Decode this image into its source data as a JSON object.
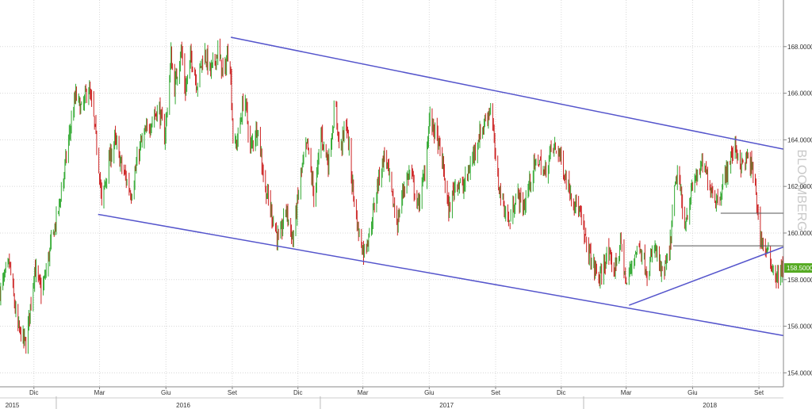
{
  "chart_data": {
    "type": "candlestick",
    "title": "",
    "xlabel": "",
    "ylabel": "",
    "ylim": [
      153.4,
      170.0
    ],
    "y_ticks": [
      "154.0000",
      "156.0000",
      "158.0000",
      "160.0000",
      "162.0000",
      "164.0000",
      "166.0000",
      "168.0000"
    ],
    "y_tick_values": [
      154,
      156,
      158,
      160,
      162,
      164,
      166,
      168
    ],
    "grid": true,
    "months": [
      {
        "label": "Dic",
        "date": "2015-12-01"
      },
      {
        "label": "Mar",
        "date": "2016-03-01"
      },
      {
        "label": "Giu",
        "date": "2016-06-01"
      },
      {
        "label": "Set",
        "date": "2016-09-01"
      },
      {
        "label": "Dic",
        "date": "2016-12-01"
      },
      {
        "label": "Mar",
        "date": "2017-03-01"
      },
      {
        "label": "Giu",
        "date": "2017-06-01"
      },
      {
        "label": "Set",
        "date": "2017-09-01"
      },
      {
        "label": "Dic",
        "date": "2017-12-01"
      },
      {
        "label": "Mar",
        "date": "2018-03-01"
      },
      {
        "label": "Giu",
        "date": "2018-06-01"
      },
      {
        "label": "Set",
        "date": "2018-09-01"
      }
    ],
    "years": [
      {
        "label": "2015",
        "date": "2015-11-01"
      },
      {
        "label": "2016",
        "date": "2016-06-25"
      },
      {
        "label": "2017",
        "date": "2017-06-25"
      },
      {
        "label": "2018",
        "date": "2018-06-25"
      }
    ],
    "year_boundaries": [
      "2016-01-01",
      "2017-01-01",
      "2018-01-01"
    ],
    "x_range": [
      "2015-10-15",
      "2018-10-05"
    ],
    "last_price": "158.5000",
    "last_price_value": 158.5,
    "watermark": "BLOOMBERG",
    "colors": {
      "up": "#33aa33",
      "down": "#cc2222",
      "trendline": "#5555cc",
      "level": "#555555",
      "last_price_bg": "#55aa22",
      "grid": "#d8d8d8"
    },
    "trendlines": [
      {
        "name": "upper-channel",
        "start": [
          "2016-08-30",
          168.4
        ],
        "end": [
          "2018-10-10",
          163.6
        ]
      },
      {
        "name": "lower-channel",
        "start": [
          "2016-02-28",
          160.8
        ],
        "end": [
          "2018-10-05",
          155.6
        ]
      },
      {
        "name": "rising-support",
        "start": [
          "2018-03-05",
          156.9
        ],
        "end": [
          "2018-10-05",
          159.4
        ]
      }
    ],
    "levels": [
      {
        "name": "level-160-9",
        "start": "2018-07-10",
        "end": "2018-10-10",
        "value": 160.85
      },
      {
        "name": "level-159-5",
        "start": "2018-05-05",
        "end": "2018-10-10",
        "value": 159.45
      }
    ],
    "anchors": [
      [
        "2015-10-15",
        157.5
      ],
      [
        "2015-10-28",
        158.7
      ],
      [
        "2015-11-08",
        156.0
      ],
      [
        "2015-11-20",
        155.2
      ],
      [
        "2015-12-02",
        158.5
      ],
      [
        "2015-12-12",
        157.4
      ],
      [
        "2015-12-24",
        159.4
      ],
      [
        "2016-01-04",
        161.0
      ],
      [
        "2016-01-12",
        162.6
      ],
      [
        "2016-01-20",
        164.4
      ],
      [
        "2016-01-28",
        165.9
      ],
      [
        "2016-02-06",
        165.2
      ],
      [
        "2016-02-14",
        166.4
      ],
      [
        "2016-02-22",
        164.9
      ],
      [
        "2016-03-01",
        162.6
      ],
      [
        "2016-03-04",
        161.2
      ],
      [
        "2016-03-12",
        162.8
      ],
      [
        "2016-03-22",
        164.0
      ],
      [
        "2016-04-02",
        162.7
      ],
      [
        "2016-04-14",
        161.7
      ],
      [
        "2016-04-26",
        163.7
      ],
      [
        "2016-05-10",
        164.7
      ],
      [
        "2016-05-22",
        165.4
      ],
      [
        "2016-05-30",
        164.1
      ],
      [
        "2016-06-04",
        165.7
      ],
      [
        "2016-06-08",
        167.6
      ],
      [
        "2016-06-13",
        166.2
      ],
      [
        "2016-06-22",
        167.9
      ],
      [
        "2016-06-28",
        166.1
      ],
      [
        "2016-07-06",
        167.6
      ],
      [
        "2016-07-14",
        166.4
      ],
      [
        "2016-07-24",
        167.8
      ],
      [
        "2016-08-02",
        166.9
      ],
      [
        "2016-08-12",
        167.8
      ],
      [
        "2016-08-20",
        166.7
      ],
      [
        "2016-08-28",
        168.1
      ],
      [
        "2016-09-03",
        163.4
      ],
      [
        "2016-09-10",
        164.3
      ],
      [
        "2016-09-18",
        166.0
      ],
      [
        "2016-09-26",
        163.6
      ],
      [
        "2016-10-06",
        164.6
      ],
      [
        "2016-10-16",
        162.0
      ],
      [
        "2016-10-26",
        160.8
      ],
      [
        "2016-11-05",
        159.5
      ],
      [
        "2016-11-14",
        161.1
      ],
      [
        "2016-11-24",
        159.7
      ],
      [
        "2016-12-05",
        162.5
      ],
      [
        "2016-12-14",
        163.8
      ],
      [
        "2016-12-24",
        161.4
      ],
      [
        "2017-01-02",
        164.3
      ],
      [
        "2017-01-12",
        163.0
      ],
      [
        "2017-01-22",
        165.6
      ],
      [
        "2017-01-28",
        163.4
      ],
      [
        "2017-02-06",
        164.8
      ],
      [
        "2017-02-14",
        162.2
      ],
      [
        "2017-02-22",
        160.2
      ],
      [
        "2017-03-02",
        159.2
      ],
      [
        "2017-03-12",
        160.2
      ],
      [
        "2017-03-22",
        162.2
      ],
      [
        "2017-04-01",
        163.5
      ],
      [
        "2017-04-10",
        161.6
      ],
      [
        "2017-04-18",
        160.4
      ],
      [
        "2017-04-26",
        161.9
      ],
      [
        "2017-05-06",
        162.7
      ],
      [
        "2017-05-16",
        161.1
      ],
      [
        "2017-05-26",
        162.6
      ],
      [
        "2017-06-01",
        164.9
      ],
      [
        "2017-06-10",
        164.3
      ],
      [
        "2017-06-20",
        162.9
      ],
      [
        "2017-06-28",
        160.9
      ],
      [
        "2017-07-08",
        162.3
      ],
      [
        "2017-07-18",
        161.9
      ],
      [
        "2017-07-28",
        162.9
      ],
      [
        "2017-08-06",
        163.9
      ],
      [
        "2017-08-16",
        164.7
      ],
      [
        "2017-08-26",
        165.5
      ],
      [
        "2017-09-02",
        162.6
      ],
      [
        "2017-09-10",
        161.4
      ],
      [
        "2017-09-20",
        160.4
      ],
      [
        "2017-09-30",
        161.7
      ],
      [
        "2017-10-10",
        161.1
      ],
      [
        "2017-10-20",
        162.4
      ],
      [
        "2017-10-30",
        163.2
      ],
      [
        "2017-11-08",
        162.5
      ],
      [
        "2017-11-18",
        163.7
      ],
      [
        "2017-11-28",
        163.5
      ],
      [
        "2017-12-06",
        162.5
      ],
      [
        "2017-12-16",
        161.6
      ],
      [
        "2017-12-26",
        160.9
      ],
      [
        "2018-01-04",
        159.6
      ],
      [
        "2018-01-14",
        158.6
      ],
      [
        "2018-01-24",
        158.0
      ],
      [
        "2018-02-02",
        159.1
      ],
      [
        "2018-02-12",
        158.4
      ],
      [
        "2018-02-22",
        159.6
      ],
      [
        "2018-03-01",
        157.7
      ],
      [
        "2018-03-10",
        158.9
      ],
      [
        "2018-03-20",
        159.5
      ],
      [
        "2018-03-30",
        158.3
      ],
      [
        "2018-04-10",
        159.4
      ],
      [
        "2018-04-20",
        158.1
      ],
      [
        "2018-04-30",
        159.1
      ],
      [
        "2018-05-06",
        161.5
      ],
      [
        "2018-05-12",
        162.8
      ],
      [
        "2018-05-20",
        160.2
      ],
      [
        "2018-05-28",
        161.4
      ],
      [
        "2018-06-05",
        162.4
      ],
      [
        "2018-06-15",
        162.9
      ],
      [
        "2018-06-25",
        162.1
      ],
      [
        "2018-07-04",
        161.4
      ],
      [
        "2018-07-12",
        161.9
      ],
      [
        "2018-07-22",
        163.1
      ],
      [
        "2018-07-30",
        163.7
      ],
      [
        "2018-08-08",
        162.9
      ],
      [
        "2018-08-16",
        163.2
      ],
      [
        "2018-08-26",
        162.4
      ],
      [
        "2018-09-02",
        159.9
      ],
      [
        "2018-09-10",
        159.3
      ],
      [
        "2018-09-18",
        158.7
      ],
      [
        "2018-09-26",
        158.1
      ],
      [
        "2018-10-05",
        158.5
      ]
    ]
  }
}
